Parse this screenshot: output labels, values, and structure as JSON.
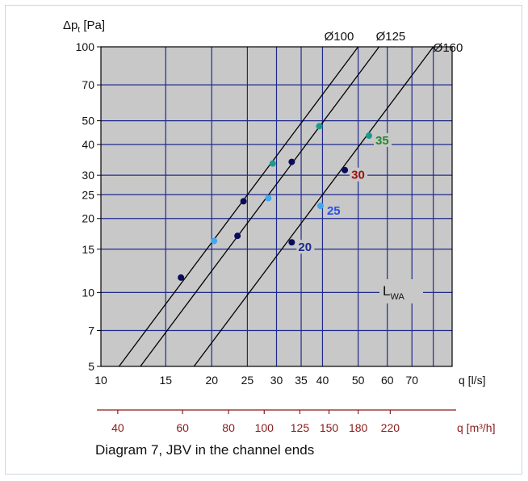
{
  "chart_data": {
    "type": "line",
    "caption": "Diagram 7, JBV in the channel ends",
    "x_axis": {
      "label": "q [l/s]",
      "scale": "log",
      "range": [
        10,
        90
      ],
      "ticks": [
        10,
        15,
        20,
        25,
        30,
        35,
        40,
        50,
        60,
        70
      ],
      "tick_labels": [
        "10",
        "15",
        "20",
        "25",
        "30",
        "35",
        "40",
        "50",
        "60",
        "70"
      ]
    },
    "x2_axis": {
      "label": "q [m³/h]",
      "ticks": [
        40,
        60,
        80,
        100,
        125,
        150,
        180,
        220
      ],
      "tick_labels": [
        "40",
        "60",
        "80",
        "100",
        "125",
        "150",
        "180",
        "220"
      ],
      "color": "#8b1a1a"
    },
    "y_axis": {
      "label_main": "Δp",
      "label_sub": "t",
      "label_unit": " [Pa]",
      "scale": "log",
      "range": [
        5,
        100
      ],
      "ticks": [
        5,
        7,
        10,
        15,
        20,
        25,
        30,
        40,
        50,
        70,
        100
      ],
      "tick_labels": [
        "5",
        "7",
        "10",
        "15",
        "20",
        "25",
        "30",
        "40",
        "50",
        "70",
        "100"
      ]
    },
    "series": [
      {
        "name": "Ø100",
        "points": [
          [
            11.2,
            5
          ],
          [
            50,
            100
          ]
        ]
      },
      {
        "name": "Ø125",
        "points": [
          [
            12.8,
            5
          ],
          [
            57,
            100
          ]
        ]
      },
      {
        "name": "Ø160",
        "points": [
          [
            17.9,
            5
          ],
          [
            80,
            100
          ]
        ]
      }
    ],
    "sound_levels": {
      "label_main": "L",
      "label_sub": "WA",
      "markers": [
        {
          "level": "20",
          "label": "20",
          "color": "#0b0b5c",
          "text_color": "#1a2a8c",
          "points": [
            [
              16.5,
              11.5
            ],
            [
              23.5,
              17
            ],
            [
              33,
              16
            ]
          ]
        },
        {
          "level": "25",
          "label": "25",
          "color": "#3fa8ee",
          "text_color": "#2a4ee8",
          "points": [
            [
              20.3,
              16.2
            ],
            [
              28.5,
              24.2
            ],
            [
              39.5,
              22.5
            ]
          ]
        },
        {
          "level": "30",
          "label": "30",
          "color": "#0b0b5c",
          "text_color": "#9a1010",
          "points": [
            [
              24.4,
              23.5
            ],
            [
              33,
              34
            ],
            [
              46,
              31.5
            ]
          ]
        },
        {
          "level": "35",
          "label": "35",
          "color": "#1e9b8f",
          "text_color": "#1f8a2a",
          "points": [
            [
              29.3,
              33.5
            ],
            [
              39.2,
              47.5
            ],
            [
              53.5,
              43.5
            ]
          ]
        }
      ]
    },
    "grid": true,
    "colors": {
      "plot_bg": "#c8c8c8",
      "grid": "#1f2a8c",
      "line": "#000000",
      "x2": "#8b1a1a"
    }
  }
}
